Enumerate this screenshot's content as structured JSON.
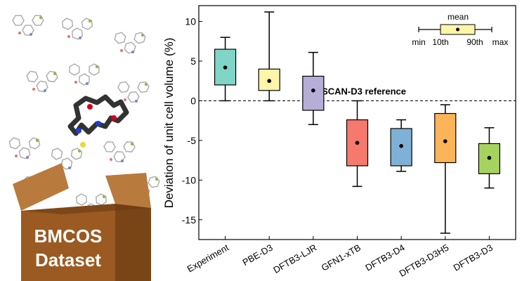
{
  "box_label_line1": "BMCOS",
  "box_label_line2": "Dataset",
  "colors": {
    "box_front": "#9a5a22",
    "box_side": "#7a4516",
    "box_flap": "#b97a3d"
  },
  "chart_data": {
    "type": "box",
    "ylabel": "Deviation of unit cell volume (%)",
    "ylim": [
      -17.5,
      12
    ],
    "yticks": [
      -15,
      -10,
      -5,
      0,
      5,
      10
    ],
    "reference_label_prefix": "r",
    "reference_label_sup": "2",
    "reference_label_suffix": "SCAN-D3 reference",
    "reference_value": 0,
    "legend": {
      "mean": "mean",
      "min": "min",
      "p10": "10th",
      "p90": "90th",
      "max": "max"
    },
    "series": [
      {
        "name": "Experiment",
        "min": 0.0,
        "p10": 2.0,
        "mean": 4.2,
        "p90": 6.5,
        "max": 8.0,
        "color": "#7fd6c6"
      },
      {
        "name": "PBE-D3",
        "min": 0.0,
        "p10": 1.3,
        "mean": 2.5,
        "p90": 4.0,
        "max": 11.2,
        "color": "#fdf6a8"
      },
      {
        "name": "DFTB3-LJR",
        "min": -3.0,
        "p10": -1.2,
        "mean": 1.3,
        "p90": 3.1,
        "max": 6.1,
        "color": "#b6aed6"
      },
      {
        "name": "GFN1-xTB",
        "min": -10.8,
        "p10": -8.2,
        "mean": -5.3,
        "p90": -2.4,
        "max": 0.0,
        "color": "#f5796c"
      },
      {
        "name": "DFTB3-D4",
        "min": -8.9,
        "p10": -8.2,
        "mean": -5.7,
        "p90": -3.5,
        "max": -2.4,
        "color": "#7fb1d6"
      },
      {
        "name": "DFTB3-D3H5",
        "min": -16.7,
        "p10": -7.8,
        "mean": -5.1,
        "p90": -1.6,
        "max": -0.5,
        "color": "#fbb458"
      },
      {
        "name": "DFTB3-D3",
        "min": -11.0,
        "p10": -9.2,
        "mean": -7.2,
        "p90": -5.4,
        "max": -3.4,
        "color": "#a6d35e"
      }
    ]
  }
}
